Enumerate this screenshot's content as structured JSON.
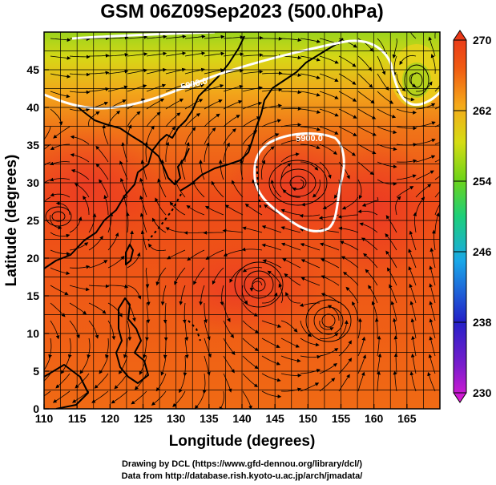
{
  "chart_data": {
    "type": "heatmap",
    "title": "GSM 06Z09Sep2023 (500.0hPa)",
    "xlabel": "Longitude (degrees)",
    "ylabel": "Latitude (degrees)",
    "xlim": [
      110,
      170
    ],
    "ylim": [
      0,
      50
    ],
    "x_ticks": [
      "110",
      "115",
      "120",
      "125",
      "130",
      "135",
      "140",
      "145",
      "150",
      "155",
      "160",
      "165"
    ],
    "y_ticks": [
      "0",
      "5",
      "10",
      "15",
      "20",
      "25",
      "30",
      "35",
      "40",
      "45"
    ],
    "grid": true,
    "colorbar": {
      "placement": "right",
      "ticks": [
        "230",
        "238",
        "246",
        "254",
        "262",
        "270"
      ],
      "range": [
        230,
        270
      ],
      "colors": [
        "#e21ad4",
        "#3a1fc8",
        "#1aa7e8",
        "#1ccf7a",
        "#7fd41a",
        "#d6dc14",
        "#f5a81a",
        "#f05a12",
        "#e8321a"
      ]
    },
    "contours": [
      {
        "label": "5900.0",
        "value": 5900.0
      },
      {
        "label": "5900.0",
        "value": 5900.0
      }
    ],
    "field_description_colors": {
      "north_band": "#b9d820",
      "warm_core": "#ee3418",
      "mid": "#f07018",
      "contour_line": "#ffffff",
      "coastline": "#000000",
      "streamline": "#000000"
    },
    "credits": [
      "Drawing by DCL (https://www.gfd-dennou.org/library/dcl/)",
      "Data from http://database.rish.kyoto-u.ac.jp/arch/jmadata/"
    ]
  }
}
